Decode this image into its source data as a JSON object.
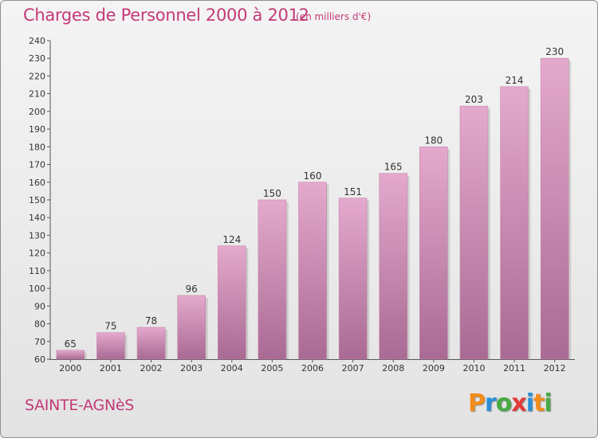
{
  "header": {
    "title": "Charges de Personnel 2000 à 2012",
    "subtitle": "(en milliers d'€)"
  },
  "footer": {
    "place": "SAINTE-AGNèS",
    "logo_letters": [
      "P",
      "r",
      "o",
      "x",
      "i",
      "t",
      "i"
    ],
    "logo_colors": [
      "#f28c1a",
      "#2a8fd6",
      "#49a942",
      "#e23a3a",
      "#2a8fd6",
      "#f28c1a",
      "#49a942"
    ]
  },
  "chart_data": {
    "type": "bar",
    "title": "Charges de Personnel 2000 à 2012",
    "subtitle": "(en milliers d'€)",
    "categories": [
      "2000",
      "2001",
      "2002",
      "2003",
      "2004",
      "2005",
      "2006",
      "2007",
      "2008",
      "2009",
      "2010",
      "2011",
      "2012"
    ],
    "values": [
      65,
      75,
      78,
      96,
      124,
      150,
      160,
      151,
      165,
      180,
      203,
      214,
      230
    ],
    "data_labels": [
      "65",
      "75",
      "78",
      "96",
      "124",
      "150",
      "160",
      "151",
      "165",
      "180",
      "203",
      "214",
      "230"
    ],
    "ylim": [
      60,
      240
    ],
    "yticks": [
      "60",
      "70",
      "80",
      "90",
      "100",
      "110",
      "120",
      "130",
      "140",
      "150",
      "160",
      "170",
      "180",
      "190",
      "200",
      "210",
      "220",
      "230",
      "240"
    ],
    "xlabel": "",
    "ylabel": "",
    "grid": false,
    "bar_color_top": "#e4a9cd",
    "bar_color_bottom": "#a96a93"
  }
}
